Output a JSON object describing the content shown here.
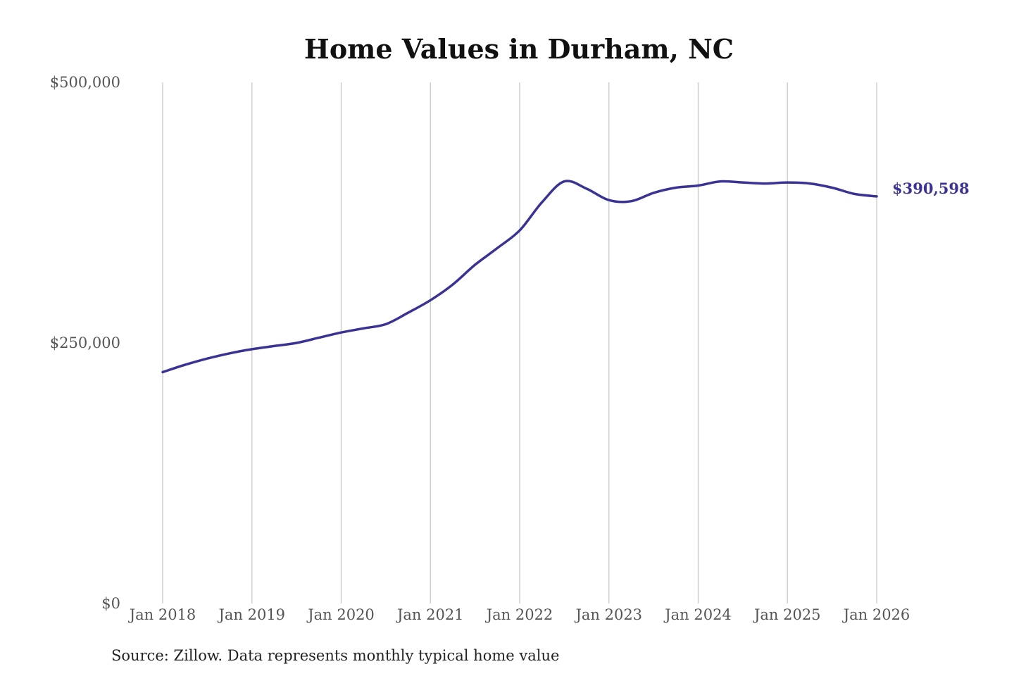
{
  "chart_data": {
    "type": "line",
    "title": "Home Values in Durham, NC",
    "source": "Source: Zillow. Data represents monthly typical home value",
    "ylim": [
      0,
      500000
    ],
    "y_ticks": [
      {
        "value": 0,
        "label": "$0"
      },
      {
        "value": 250000,
        "label": "$250,000"
      },
      {
        "value": 500000,
        "label": "$500,000"
      }
    ],
    "x_ticks": [
      {
        "value": 2018,
        "label": "Jan 2018"
      },
      {
        "value": 2019,
        "label": "Jan 2019"
      },
      {
        "value": 2020,
        "label": "Jan 2020"
      },
      {
        "value": 2021,
        "label": "Jan 2021"
      },
      {
        "value": 2022,
        "label": "Jan 2022"
      },
      {
        "value": 2023,
        "label": "Jan 2023"
      },
      {
        "value": 2024,
        "label": "Jan 2024"
      },
      {
        "value": 2025,
        "label": "Jan 2025"
      },
      {
        "value": 2026,
        "label": "Jan 2026"
      }
    ],
    "xlim": [
      2018,
      2026
    ],
    "grid": "vertical",
    "line_color": "#3a3393",
    "end_label": "$390,598",
    "series": [
      {
        "x": [
          "Jan 2018",
          "Apr 2018",
          "Jul 2018",
          "Oct 2018",
          "Jan 2019",
          "Apr 2019",
          "Jul 2019",
          "Oct 2019",
          "Jan 2020",
          "Apr 2020",
          "Jul 2020",
          "Oct 2020",
          "Jan 2021",
          "Apr 2021",
          "Jul 2021",
          "Oct 2021",
          "Jan 2022",
          "Apr 2022",
          "Jul 2022",
          "Oct 2022",
          "Jan 2023",
          "Apr 2023",
          "Jul 2023",
          "Oct 2023",
          "Jan 2024",
          "Apr 2024",
          "Jul 2024",
          "Oct 2024",
          "Jan 2025",
          "Apr 2025",
          "Jul 2025",
          "Oct 2025",
          "Jan 2026"
        ],
        "x_num": [
          2018,
          2018.25,
          2018.5,
          2018.75,
          2019,
          2019.25,
          2019.5,
          2019.75,
          2020,
          2020.25,
          2020.5,
          2020.75,
          2021,
          2021.25,
          2021.5,
          2021.75,
          2022,
          2022.25,
          2022.5,
          2022.75,
          2023,
          2023.25,
          2023.5,
          2023.75,
          2024,
          2024.25,
          2024.5,
          2024.75,
          2025,
          2025.25,
          2025.5,
          2025.75,
          2026
        ],
        "values": [
          222000,
          229000,
          235000,
          240000,
          244000,
          247000,
          250000,
          255000,
          260000,
          264000,
          268000,
          279000,
          291000,
          306000,
          325000,
          341000,
          358000,
          385000,
          405000,
          398000,
          387000,
          386000,
          394000,
          399000,
          401000,
          405000,
          404000,
          403000,
          404000,
          403000,
          399000,
          393000,
          390598
        ]
      }
    ]
  }
}
